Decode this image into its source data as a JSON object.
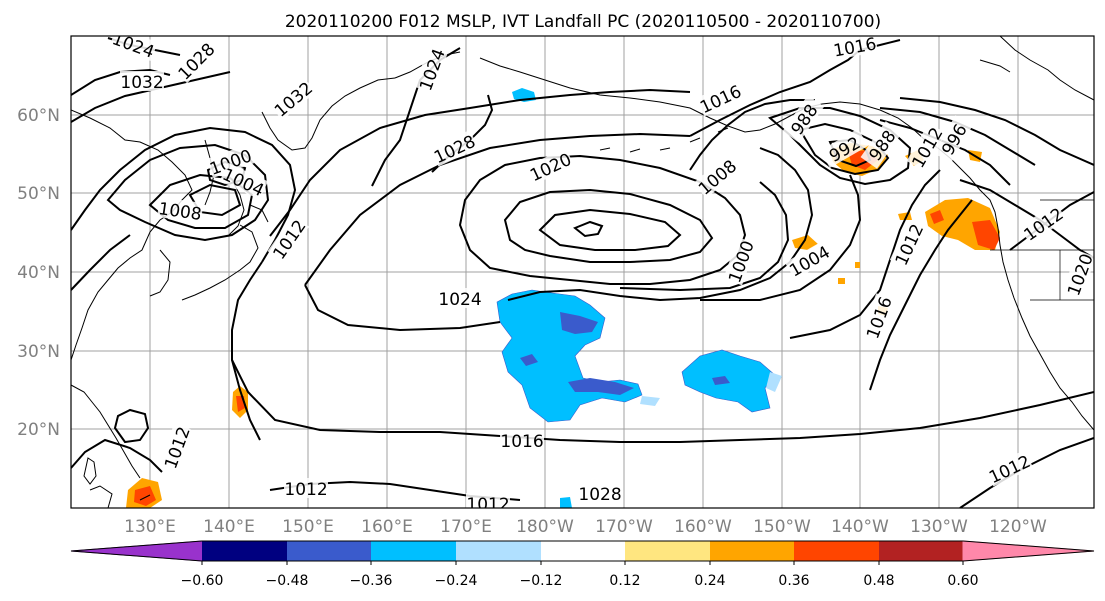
{
  "title": "2020110200 F012 MSLP, IVT Landfall PC (2020110500 - 2020110700)",
  "map": {
    "lon_labels": [
      "130°E",
      "140°E",
      "150°E",
      "160°E",
      "170°E",
      "180°W",
      "170°W",
      "160°W",
      "150°W",
      "140°W",
      "130°W",
      "120°W"
    ],
    "lat_labels": [
      "60°N",
      "50°N",
      "40°N",
      "30°N",
      "20°N"
    ],
    "gridline_color": "#a0a0a0",
    "contour_labels": [
      "1024",
      "1028",
      "1032",
      "1032",
      "1000",
      "1004",
      "1008",
      "1012",
      "1024",
      "1028",
      "1020",
      "1016",
      "1016",
      "1016",
      "1012",
      "1008",
      "988",
      "992",
      "988",
      "996",
      "1000",
      "1004",
      "1012",
      "1020",
      "1024",
      "1028",
      "1016",
      "1012",
      "1012",
      "1012",
      "1012",
      "1012"
    ]
  },
  "colorbar": {
    "tick_labels": [
      "−0.60",
      "−0.48",
      "−0.36",
      "−0.24",
      "−0.12",
      "0.12",
      "0.24",
      "0.36",
      "0.48",
      "0.60"
    ],
    "colors": [
      "#9932cc",
      "#000080",
      "#3a5bcc",
      "#00bfff",
      "#b0e0ff",
      "#ffffff",
      "#ffe680",
      "#ffa500",
      "#ff4500",
      "#b22222",
      "#ff88aa"
    ]
  }
}
